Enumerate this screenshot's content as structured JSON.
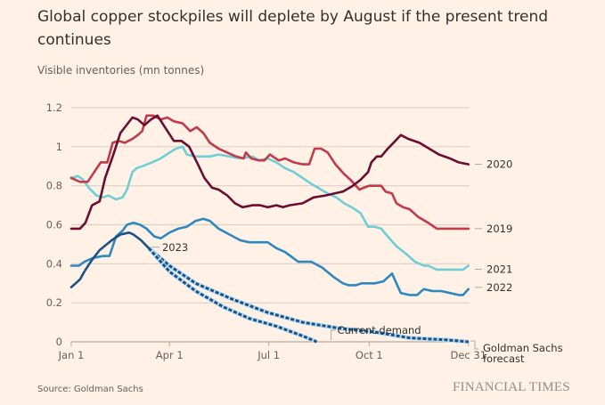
{
  "title": "Global copper stockpiles will deplete by August if the present trend continues",
  "subtitle": "Visible inventories (mn tonnes)",
  "source": "Source: Goldman Sachs",
  "brand": "FINANCIAL TIMES",
  "chart_data": {
    "type": "line",
    "title": "Global copper stockpiles will deplete by August if the present trend continues",
    "ylabel": "Visible inventories (mn tonnes)",
    "xlabel": "",
    "xlim": [
      0,
      365
    ],
    "ylim": [
      0,
      1.2
    ],
    "grid": true,
    "x_ticks": [
      {
        "day": 0,
        "label": "Jan 1"
      },
      {
        "day": 90,
        "label": "Apr 1"
      },
      {
        "day": 181,
        "label": "Jul 1"
      },
      {
        "day": 273,
        "label": "Oct 1"
      },
      {
        "day": 364,
        "label": "Dec 31"
      }
    ],
    "y_ticks": [
      {
        "value": 0,
        "label": "0"
      },
      {
        "value": 0.2,
        "label": "0.2"
      },
      {
        "value": 0.4,
        "label": "0.4"
      },
      {
        "value": 0.6,
        "label": "0.6"
      },
      {
        "value": 0.8,
        "label": "0.8"
      },
      {
        "value": 1,
        "label": "1"
      },
      {
        "value": 1.2,
        "label": "1.2"
      }
    ],
    "series": [
      {
        "name": "2020",
        "color": "#6b0d32",
        "style": "solid",
        "points": [
          [
            0,
            0.58
          ],
          [
            8,
            0.58
          ],
          [
            13,
            0.61
          ],
          [
            19,
            0.7
          ],
          [
            26,
            0.72
          ],
          [
            31,
            0.84
          ],
          [
            38,
            0.95
          ],
          [
            45,
            1.07
          ],
          [
            56,
            1.15
          ],
          [
            61,
            1.14
          ],
          [
            67,
            1.11
          ],
          [
            73,
            1.14
          ],
          [
            79,
            1.16
          ],
          [
            87,
            1.09
          ],
          [
            94,
            1.03
          ],
          [
            101,
            1.03
          ],
          [
            108,
            1.0
          ],
          [
            116,
            0.91
          ],
          [
            122,
            0.84
          ],
          [
            129,
            0.79
          ],
          [
            135,
            0.78
          ],
          [
            143,
            0.75
          ],
          [
            150,
            0.71
          ],
          [
            157,
            0.69
          ],
          [
            166,
            0.7
          ],
          [
            173,
            0.7
          ],
          [
            180,
            0.69
          ],
          [
            188,
            0.7
          ],
          [
            194,
            0.69
          ],
          [
            200,
            0.7
          ],
          [
            212,
            0.71
          ],
          [
            222,
            0.74
          ],
          [
            233,
            0.75
          ],
          [
            241,
            0.76
          ],
          [
            249,
            0.77
          ],
          [
            258,
            0.8
          ],
          [
            265,
            0.83
          ],
          [
            272,
            0.87
          ],
          [
            275,
            0.92
          ],
          [
            280,
            0.95
          ],
          [
            284,
            0.95
          ],
          [
            290,
            0.99
          ],
          [
            297,
            1.03
          ],
          [
            302,
            1.06
          ],
          [
            309,
            1.04
          ],
          [
            319,
            1.02
          ],
          [
            328,
            0.99
          ],
          [
            337,
            0.96
          ],
          [
            347,
            0.94
          ],
          [
            355,
            0.92
          ],
          [
            364,
            0.91
          ]
        ]
      },
      {
        "name": "2019",
        "color": "#c23a4a",
        "style": "solid",
        "points": [
          [
            0,
            0.84
          ],
          [
            8,
            0.82
          ],
          [
            15,
            0.82
          ],
          [
            21,
            0.87
          ],
          [
            27,
            0.92
          ],
          [
            33,
            0.92
          ],
          [
            38,
            1.02
          ],
          [
            43,
            1.03
          ],
          [
            49,
            1.02
          ],
          [
            56,
            1.04
          ],
          [
            61,
            1.06
          ],
          [
            65,
            1.08
          ],
          [
            69,
            1.16
          ],
          [
            75,
            1.16
          ],
          [
            82,
            1.14
          ],
          [
            88,
            1.15
          ],
          [
            94,
            1.13
          ],
          [
            102,
            1.12
          ],
          [
            109,
            1.08
          ],
          [
            115,
            1.1
          ],
          [
            121,
            1.07
          ],
          [
            127,
            1.02
          ],
          [
            135,
            0.99
          ],
          [
            143,
            0.97
          ],
          [
            151,
            0.95
          ],
          [
            158,
            0.94
          ],
          [
            160,
            0.97
          ],
          [
            165,
            0.94
          ],
          [
            172,
            0.93
          ],
          [
            177,
            0.93
          ],
          [
            182,
            0.96
          ],
          [
            190,
            0.93
          ],
          [
            196,
            0.94
          ],
          [
            204,
            0.92
          ],
          [
            212,
            0.91
          ],
          [
            218,
            0.91
          ],
          [
            223,
            0.99
          ],
          [
            229,
            0.99
          ],
          [
            235,
            0.97
          ],
          [
            242,
            0.91
          ],
          [
            250,
            0.86
          ],
          [
            256,
            0.83
          ],
          [
            264,
            0.78
          ],
          [
            268,
            0.79
          ],
          [
            273,
            0.8
          ],
          [
            284,
            0.8
          ],
          [
            288,
            0.77
          ],
          [
            294,
            0.76
          ],
          [
            298,
            0.71
          ],
          [
            304,
            0.69
          ],
          [
            310,
            0.68
          ],
          [
            318,
            0.64
          ],
          [
            327,
            0.61
          ],
          [
            335,
            0.58
          ],
          [
            343,
            0.58
          ],
          [
            351,
            0.58
          ],
          [
            364,
            0.58
          ]
        ]
      },
      {
        "name": "2021",
        "color": "#6fcdd6",
        "style": "solid",
        "points": [
          [
            0,
            0.84
          ],
          [
            6,
            0.85
          ],
          [
            11,
            0.83
          ],
          [
            16,
            0.79
          ],
          [
            23,
            0.75
          ],
          [
            29,
            0.74
          ],
          [
            34,
            0.75
          ],
          [
            41,
            0.73
          ],
          [
            47,
            0.74
          ],
          [
            51,
            0.78
          ],
          [
            56,
            0.87
          ],
          [
            60,
            0.89
          ],
          [
            65,
            0.9
          ],
          [
            74,
            0.92
          ],
          [
            82,
            0.94
          ],
          [
            90,
            0.97
          ],
          [
            96,
            0.99
          ],
          [
            102,
            1.0
          ],
          [
            106,
            0.96
          ],
          [
            114,
            0.95
          ],
          [
            127,
            0.95
          ],
          [
            135,
            0.96
          ],
          [
            145,
            0.95
          ],
          [
            155,
            0.94
          ],
          [
            166,
            0.95
          ],
          [
            172,
            0.93
          ],
          [
            180,
            0.94
          ],
          [
            188,
            0.92
          ],
          [
            196,
            0.89
          ],
          [
            204,
            0.87
          ],
          [
            212,
            0.84
          ],
          [
            220,
            0.81
          ],
          [
            229,
            0.78
          ],
          [
            235,
            0.76
          ],
          [
            243,
            0.74
          ],
          [
            250,
            0.71
          ],
          [
            257,
            0.69
          ],
          [
            265,
            0.66
          ],
          [
            272,
            0.59
          ],
          [
            278,
            0.59
          ],
          [
            284,
            0.58
          ],
          [
            290,
            0.54
          ],
          [
            298,
            0.49
          ],
          [
            307,
            0.45
          ],
          [
            315,
            0.41
          ],
          [
            323,
            0.39
          ],
          [
            327,
            0.39
          ],
          [
            335,
            0.37
          ],
          [
            343,
            0.37
          ],
          [
            351,
            0.37
          ],
          [
            359,
            0.37
          ],
          [
            364,
            0.39
          ]
        ]
      },
      {
        "name": "2022",
        "color": "#2e88c0",
        "style": "solid",
        "points": [
          [
            0,
            0.39
          ],
          [
            7,
            0.39
          ],
          [
            12,
            0.41
          ],
          [
            20,
            0.43
          ],
          [
            29,
            0.44
          ],
          [
            35,
            0.44
          ],
          [
            41,
            0.54
          ],
          [
            47,
            0.57
          ],
          [
            51,
            0.6
          ],
          [
            57,
            0.61
          ],
          [
            63,
            0.6
          ],
          [
            69,
            0.58
          ],
          [
            76,
            0.54
          ],
          [
            82,
            0.53
          ],
          [
            90,
            0.56
          ],
          [
            98,
            0.58
          ],
          [
            106,
            0.59
          ],
          [
            114,
            0.62
          ],
          [
            121,
            0.63
          ],
          [
            127,
            0.62
          ],
          [
            135,
            0.58
          ],
          [
            145,
            0.55
          ],
          [
            155,
            0.52
          ],
          [
            163,
            0.51
          ],
          [
            172,
            0.51
          ],
          [
            180,
            0.51
          ],
          [
            188,
            0.48
          ],
          [
            196,
            0.46
          ],
          [
            208,
            0.41
          ],
          [
            220,
            0.41
          ],
          [
            230,
            0.38
          ],
          [
            241,
            0.33
          ],
          [
            249,
            0.3
          ],
          [
            254,
            0.29
          ],
          [
            261,
            0.29
          ],
          [
            266,
            0.3
          ],
          [
            272,
            0.3
          ],
          [
            278,
            0.3
          ],
          [
            286,
            0.31
          ],
          [
            294,
            0.35
          ],
          [
            302,
            0.25
          ],
          [
            310,
            0.24
          ],
          [
            317,
            0.24
          ],
          [
            323,
            0.27
          ],
          [
            331,
            0.26
          ],
          [
            339,
            0.26
          ],
          [
            347,
            0.25
          ],
          [
            355,
            0.24
          ],
          [
            359,
            0.24
          ],
          [
            364,
            0.27
          ]
        ]
      },
      {
        "name": "2023",
        "color": "#1c4f85",
        "style": "solid",
        "points": [
          [
            0,
            0.28
          ],
          [
            4,
            0.3
          ],
          [
            8,
            0.32
          ],
          [
            12,
            0.36
          ],
          [
            19,
            0.42
          ],
          [
            26,
            0.47
          ],
          [
            37,
            0.52
          ],
          [
            45,
            0.55
          ],
          [
            53,
            0.56
          ],
          [
            57,
            0.55
          ],
          [
            64,
            0.52
          ],
          [
            71,
            0.48
          ]
        ]
      },
      {
        "name": "Goldman Sachs forecast",
        "color": "#1c4f85",
        "style": "dashed",
        "points": [
          [
            71,
            0.48
          ],
          [
            90,
            0.39
          ],
          [
            114,
            0.3
          ],
          [
            147,
            0.22
          ],
          [
            180,
            0.15
          ],
          [
            212,
            0.1
          ],
          [
            245,
            0.07
          ],
          [
            278,
            0.05
          ],
          [
            310,
            0.02
          ],
          [
            343,
            0.01
          ],
          [
            364,
            0.0
          ]
        ]
      },
      {
        "name": "Current demand",
        "color": "#1c4f85",
        "style": "dashed",
        "points": [
          [
            71,
            0.48
          ],
          [
            90,
            0.36
          ],
          [
            114,
            0.26
          ],
          [
            139,
            0.18
          ],
          [
            163,
            0.12
          ],
          [
            188,
            0.08
          ],
          [
            212,
            0.03
          ],
          [
            225,
            0.0
          ]
        ]
      }
    ],
    "annotations": [
      {
        "text": "2023",
        "series": "2023"
      },
      {
        "text": "Current demand",
        "series": "Current demand"
      },
      {
        "text": "Goldman Sachs forecast",
        "lines": [
          "Goldman Sachs",
          "forecast"
        ],
        "series": "Goldman Sachs forecast"
      },
      {
        "text": "2020",
        "series": "2020"
      },
      {
        "text": "2019",
        "series": "2019"
      },
      {
        "text": "2021",
        "series": "2021"
      },
      {
        "text": "2022",
        "series": "2022"
      }
    ]
  }
}
